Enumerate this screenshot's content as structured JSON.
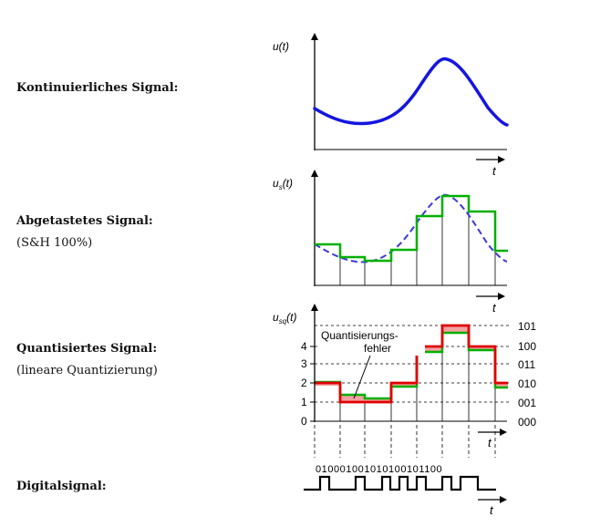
{
  "rows": [
    {
      "title": "Kontinuierliches Signal:",
      "subtitle": ""
    },
    {
      "title": "Abgetastetes Signal:",
      "subtitle": "(S&H 100%)"
    },
    {
      "title": "Quantisiertes Signal:",
      "subtitle": "(lineare Quantizierung)"
    },
    {
      "title": "Digitalsignal:",
      "subtitle": ""
    }
  ],
  "plots": {
    "continuous": {
      "y_label": "u(t)",
      "x_label": "t"
    },
    "sampled": {
      "y_label": "us(t)",
      "x_label": "t"
    },
    "quantized": {
      "y_label": "usq(t)",
      "x_label": "t",
      "y_ticks": [
        "0",
        "1",
        "2",
        "3",
        "4"
      ],
      "codes": [
        "000",
        "001",
        "010",
        "011",
        "100",
        "101"
      ],
      "annotation_line1": "Quantisierungs-",
      "annotation_line2": "fehler"
    },
    "digital": {
      "bits": "010001001010100101100",
      "x_label": "t"
    }
  },
  "colors": {
    "continuous_signal": "#1515e0",
    "sampled_signal": "#00b000",
    "dashed_signal": "#3a3ad8",
    "quantized_signal": "#e00000",
    "quant_error_fill": "#f3a0a0"
  }
}
